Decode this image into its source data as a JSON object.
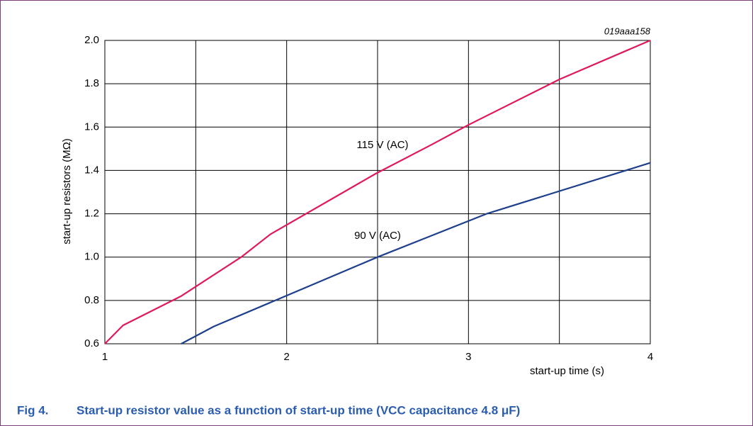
{
  "chart_data": {
    "type": "line",
    "figure_label": "Fig 4.",
    "title": "Start-up resistor value as a function of start-up time (VCC capacitance 4.8 μF)",
    "code": "019aaa158",
    "xlabel": "start-up time (s)",
    "ylabel": "start-up resistors (MΩ)",
    "xlim": [
      1,
      4
    ],
    "ylim": [
      0.6,
      2.0
    ],
    "xticks": [
      1,
      2,
      3,
      4
    ],
    "xgrid_minor": [
      1.5,
      2.5,
      3.5
    ],
    "yticks": [
      0.6,
      0.8,
      {
        "value": 1.0,
        "label": "1.0"
      },
      1.2,
      1.4,
      1.6,
      1.8,
      {
        "value": 2.0,
        "label": "2.0"
      }
    ],
    "grid": true,
    "series": [
      {
        "name": "115 V (AC)",
        "color": "#e0195a",
        "x": [
          1,
          1.1,
          1.42,
          1.75,
          1.91,
          2.49,
          2.8,
          3.0,
          3.5,
          4
        ],
        "values": [
          0.6,
          0.685,
          0.82,
          1.0,
          1.105,
          1.385,
          1.52,
          1.61,
          1.82,
          2.0
        ]
      },
      {
        "name": "90 V (AC)",
        "color": "#1e3f8c",
        "x": [
          1.42,
          1.6,
          2.5,
          2.8,
          3.1,
          4
        ],
        "values": [
          0.6,
          0.68,
          1.0,
          1.1,
          1.2,
          1.435
        ]
      }
    ]
  }
}
